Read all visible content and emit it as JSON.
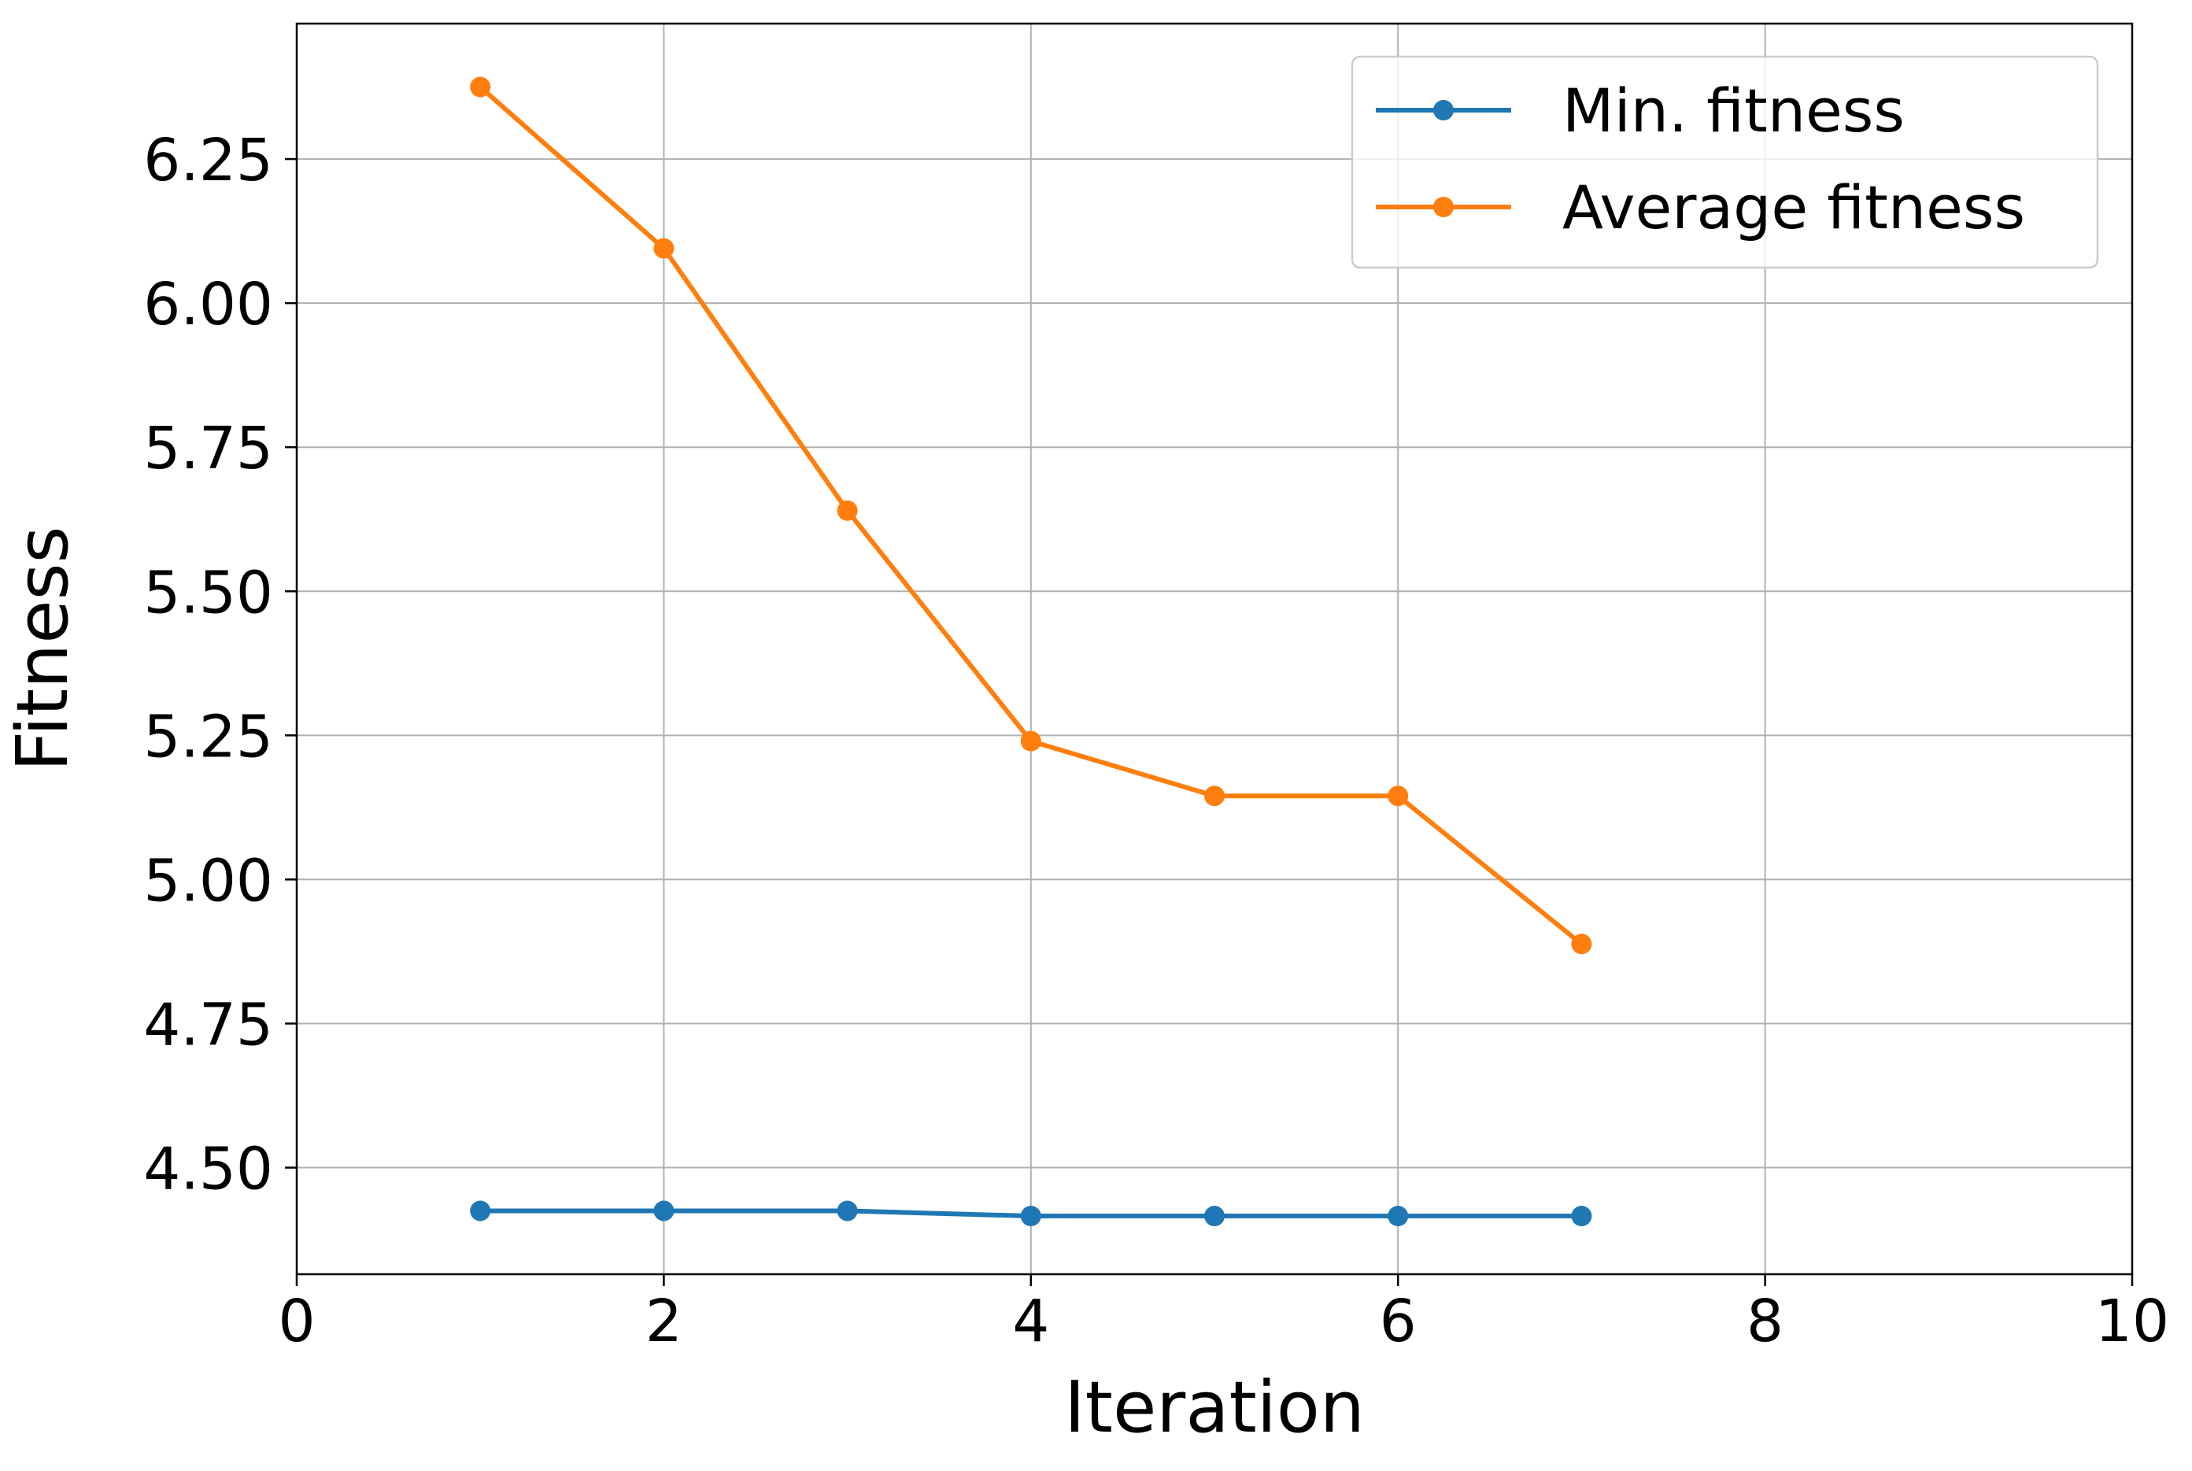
{
  "chart_data": {
    "type": "line",
    "title": "",
    "xlabel": "Iteration",
    "ylabel": "Fitness",
    "xlim": [
      0,
      10
    ],
    "ylim": [
      4.315,
      6.485
    ],
    "xticks": [
      0,
      2,
      4,
      6,
      8,
      10
    ],
    "xtick_labels": [
      "0",
      "2",
      "4",
      "6",
      "8",
      "10"
    ],
    "yticks": [
      4.5,
      4.75,
      5.0,
      5.25,
      5.5,
      5.75,
      6.0,
      6.25
    ],
    "ytick_labels": [
      "4.50",
      "4.75",
      "5.00",
      "5.25",
      "5.50",
      "5.75",
      "6.00",
      "6.25"
    ],
    "grid": true,
    "legend_position": "top-right",
    "x": [
      1,
      2,
      3,
      4,
      5,
      6,
      7
    ],
    "series": [
      {
        "name": "Min. fitness",
        "color": "#1f77b4",
        "marker": "circle",
        "values": [
          4.425,
          4.425,
          4.425,
          4.416,
          4.416,
          4.416,
          4.416
        ]
      },
      {
        "name": "Average fitness",
        "color": "#ff7f0e",
        "marker": "circle",
        "values": [
          6.375,
          6.095,
          5.64,
          5.24,
          5.145,
          5.145,
          4.888
        ]
      }
    ]
  }
}
